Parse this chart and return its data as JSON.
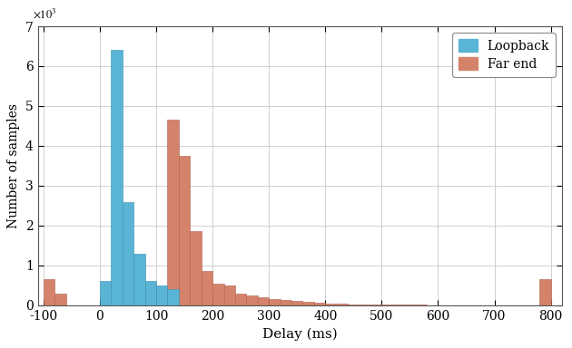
{
  "loopback_bin_edges": [
    -100,
    -80,
    -60,
    -40,
    -20,
    0,
    20,
    40,
    60,
    80,
    100,
    120
  ],
  "loopback_values": [
    0,
    0,
    0,
    0,
    0,
    600,
    6400,
    2600,
    1300,
    600,
    500,
    400
  ],
  "farend_bin_edges_left": [
    -100,
    -80,
    -60,
    60,
    80,
    100,
    120,
    140,
    160,
    180,
    200,
    220,
    240,
    260,
    280,
    300,
    320,
    340,
    360,
    380,
    400,
    420,
    440,
    460,
    480,
    500,
    520,
    540,
    560,
    580,
    600,
    780
  ],
  "farend_values": [
    650,
    300,
    0,
    100,
    100,
    400,
    4650,
    3750,
    1850,
    850,
    550,
    500,
    300,
    250,
    200,
    150,
    130,
    100,
    80,
    60,
    50,
    40,
    30,
    20,
    20,
    15,
    10,
    10,
    10,
    5,
    5,
    650
  ],
  "bin_width": 20,
  "loopback_color": "#5ab4d6",
  "farend_color": "#d4836a",
  "xlim": [
    -110,
    820
  ],
  "ylim": [
    0,
    7000
  ],
  "xticks": [
    -100,
    0,
    100,
    200,
    300,
    400,
    500,
    600,
    700,
    800
  ],
  "yticks": [
    0,
    1000,
    2000,
    3000,
    4000,
    5000,
    6000,
    7000
  ],
  "xlabel": "Delay (ms)",
  "ylabel": "Number of samples",
  "legend_labels": [
    "Loopback",
    "Far end"
  ],
  "grid_color": "#d0d0d0",
  "background_color": "#ffffff"
}
